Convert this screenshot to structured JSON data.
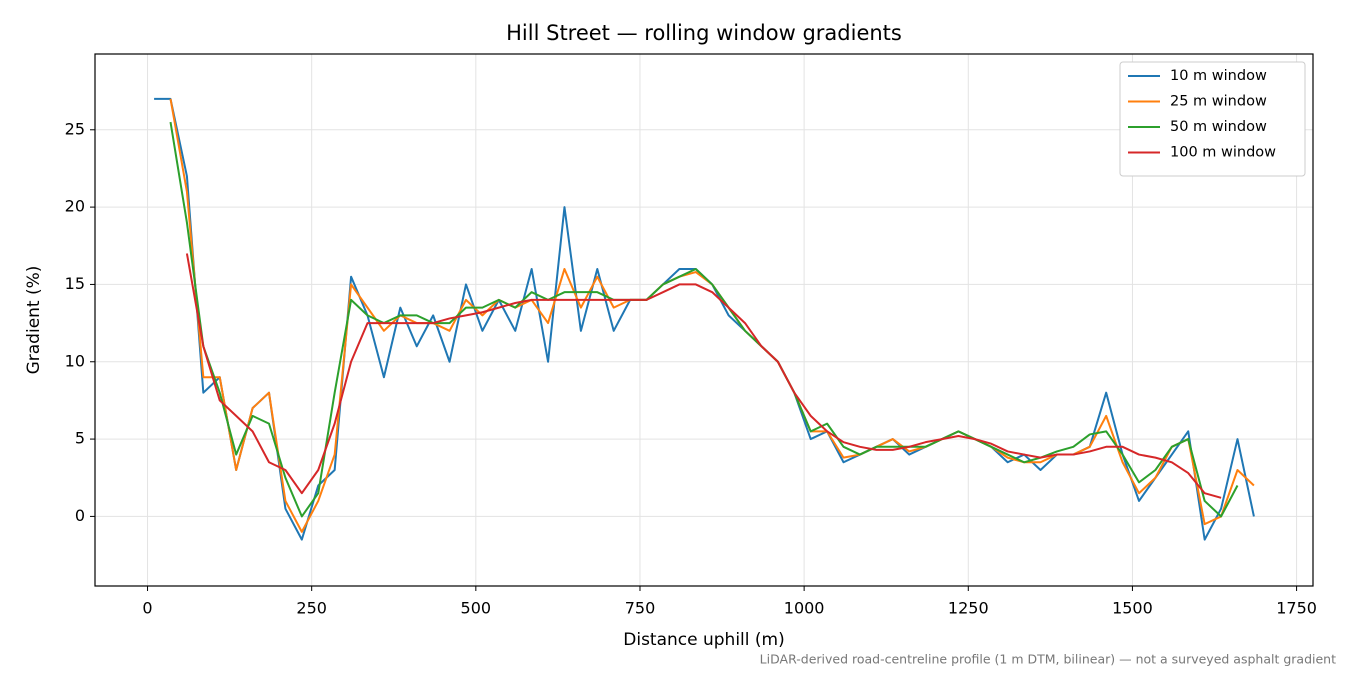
{
  "chart_data": {
    "type": "line",
    "title": "Hill Street — rolling window gradients",
    "x_label": "Distance uphill (m)",
    "y_label": "Gradient (%)",
    "note": "LiDAR-derived road-centreline profile (1 m DTM, bilinear) — not a surveyed asphalt gradient",
    "x": [
      10,
      35,
      60,
      85,
      110,
      135,
      160,
      185,
      210,
      235,
      260,
      285,
      310,
      335,
      360,
      385,
      410,
      435,
      460,
      485,
      510,
      535,
      560,
      585,
      610,
      635,
      660,
      685,
      710,
      735,
      760,
      785,
      810,
      835,
      860,
      885,
      910,
      935,
      960,
      985,
      1010,
      1035,
      1060,
      1085,
      1110,
      1135,
      1160,
      1185,
      1210,
      1235,
      1260,
      1285,
      1310,
      1335,
      1360,
      1385,
      1410,
      1435,
      1460,
      1485,
      1510,
      1535,
      1560,
      1585,
      1610,
      1635,
      1660,
      1685
    ],
    "series": [
      {
        "name": "10 m window",
        "color": "#1f77b4",
        "values": [
          27,
          27,
          22,
          8,
          9,
          3,
          7,
          8,
          0.5,
          -1.5,
          2,
          3,
          15.5,
          13,
          9,
          13.5,
          11,
          13,
          10,
          15,
          12,
          14,
          12,
          16,
          10,
          20,
          12,
          16,
          12,
          14,
          14,
          15,
          16,
          16,
          15,
          13,
          12,
          11,
          10,
          8,
          5,
          5.5,
          3.5,
          4,
          4.5,
          5,
          4,
          4.5,
          5,
          5.5,
          5,
          4.5,
          3.5,
          4,
          3,
          4,
          4,
          4.5,
          8,
          4,
          1,
          2.5,
          4,
          5.5,
          -1.5,
          0.5,
          5,
          0
        ]
      },
      {
        "name": "25 m window",
        "color": "#ff7f0e",
        "values": [
          null,
          27,
          21,
          9,
          9,
          3,
          7,
          8,
          1,
          -1,
          1,
          4,
          15,
          13.5,
          12,
          13,
          12.5,
          12.5,
          12,
          14,
          13,
          14,
          13.5,
          14,
          12.5,
          16,
          13.5,
          15.5,
          13.5,
          14,
          14,
          15,
          15.5,
          15.8,
          15,
          13.5,
          12,
          11,
          10,
          8,
          5.5,
          5.5,
          3.8,
          4,
          4.5,
          5,
          4.2,
          4.5,
          5,
          5.5,
          5,
          4.5,
          3.8,
          3.5,
          3.5,
          4,
          4,
          4.5,
          6.5,
          3.5,
          1.5,
          2.5,
          4.5,
          5,
          -0.5,
          0,
          3,
          2
        ]
      },
      {
        "name": "50 m window",
        "color": "#2ca02c",
        "values": [
          null,
          25.5,
          19,
          11,
          8,
          4,
          6.5,
          6,
          2.5,
          0,
          1.5,
          8,
          14,
          13,
          12.5,
          13,
          13,
          12.5,
          12.5,
          13.5,
          13.5,
          14,
          13.5,
          14.5,
          14,
          14.5,
          14.5,
          14.5,
          14,
          14,
          14,
          15,
          15.5,
          16,
          15,
          13.5,
          12,
          11,
          10,
          8,
          5.5,
          6,
          4.5,
          4,
          4.5,
          4.5,
          4.5,
          4.5,
          5,
          5.5,
          5,
          4.5,
          4,
          3.5,
          3.8,
          4.2,
          4.5,
          5.3,
          5.5,
          4,
          2.2,
          3,
          4.5,
          5,
          1,
          0,
          2,
          null
        ]
      },
      {
        "name": "100 m window",
        "color": "#d62728",
        "values": [
          null,
          null,
          17,
          11,
          7.5,
          6.5,
          5.5,
          3.5,
          3,
          1.5,
          3,
          6,
          10,
          12.5,
          12.5,
          12.5,
          12.5,
          12.5,
          12.8,
          13,
          13.2,
          13.5,
          13.8,
          14,
          14,
          14,
          14,
          14,
          14,
          14,
          14,
          14.5,
          15,
          15,
          14.5,
          13.5,
          12.5,
          11,
          10,
          8,
          6.5,
          5.5,
          4.8,
          4.5,
          4.3,
          4.3,
          4.5,
          4.8,
          5,
          5.2,
          5,
          4.7,
          4.2,
          4,
          3.8,
          4,
          4,
          4.2,
          4.5,
          4.5,
          4,
          3.8,
          3.5,
          2.8,
          1.5,
          1.2,
          null,
          null
        ]
      }
    ],
    "xlim": [
      -80,
      1775
    ],
    "ylim": [
      -4.5,
      29.9
    ],
    "xticks": [
      0,
      250,
      500,
      750,
      1000,
      1250,
      1500,
      1750
    ],
    "yticks": [
      0,
      5,
      10,
      15,
      20,
      25
    ],
    "grid": true,
    "legend": "upper right"
  }
}
